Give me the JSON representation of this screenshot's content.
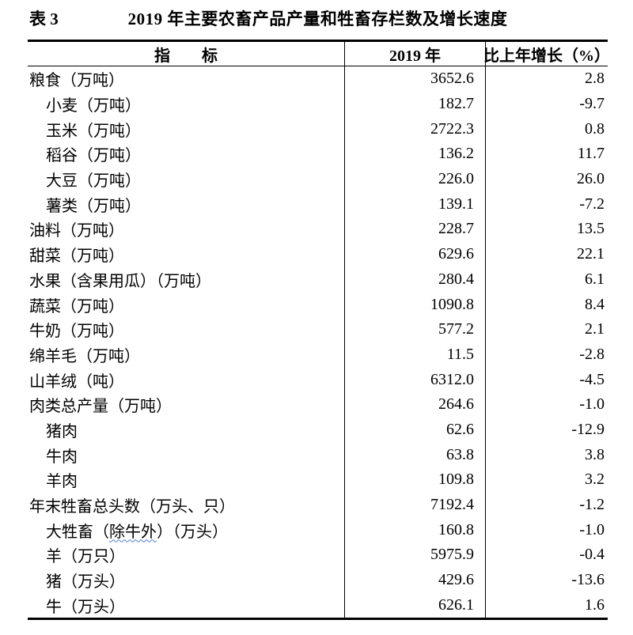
{
  "caption": {
    "label": "表 3",
    "title": "2019 年主要农畜产品产量和牲畜存栏数及增长速度"
  },
  "colors": {
    "text": "#000000",
    "table_border": "#000000",
    "spellcheck_squiggle": "#4f7bd9",
    "page_background": "#ffffff"
  },
  "table": {
    "col_headers": [
      "指　　标",
      "2019 年",
      "比上年增长（%）"
    ],
    "rows": [
      {
        "label": "粮食（万吨）",
        "indent": 0,
        "value": "3652.6",
        "growth": "2.8"
      },
      {
        "label": "小麦（万吨）",
        "indent": 1,
        "value": "182.7",
        "growth": "-9.7"
      },
      {
        "label": "玉米（万吨）",
        "indent": 1,
        "value": "2722.3",
        "growth": "0.8"
      },
      {
        "label": "稻谷（万吨）",
        "indent": 1,
        "value": "136.2",
        "growth": "11.7"
      },
      {
        "label": "大豆（万吨）",
        "indent": 1,
        "value": "226.0",
        "growth": "26.0"
      },
      {
        "label": "薯类（万吨）",
        "indent": 1,
        "value": "139.1",
        "growth": "-7.2"
      },
      {
        "label": "油料（万吨）",
        "indent": 0,
        "value": "228.7",
        "growth": "13.5"
      },
      {
        "label": "甜菜（万吨）",
        "indent": 0,
        "value": "629.6",
        "growth": "22.1"
      },
      {
        "label": "水果（含果用瓜）（万吨）",
        "indent": 0,
        "value": "280.4",
        "growth": "6.1"
      },
      {
        "label": "蔬菜（万吨）",
        "indent": 0,
        "value": "1090.8",
        "growth": "8.4"
      },
      {
        "label": "牛奶（万吨）",
        "indent": 0,
        "value": "577.2",
        "growth": "2.1"
      },
      {
        "label": "绵羊毛（万吨）",
        "indent": 0,
        "value": "11.5",
        "growth": "-2.8"
      },
      {
        "label": "山羊绒（吨）",
        "indent": 0,
        "value": "6312.0",
        "growth": "-4.5"
      },
      {
        "label": "肉类总产量（万吨）",
        "indent": 0,
        "value": "264.6",
        "growth": "-1.0"
      },
      {
        "label": "猪肉",
        "indent": 1,
        "value": "62.6",
        "growth": "-12.9"
      },
      {
        "label": "牛肉",
        "indent": 1,
        "value": "63.8",
        "growth": "3.8"
      },
      {
        "label": "羊肉",
        "indent": 1,
        "value": "109.8",
        "growth": "3.2"
      },
      {
        "label": "年末牲畜总头数（万头、只）",
        "indent": 0,
        "value": "7192.4",
        "growth": "-1.2"
      },
      {
        "label": "大牲畜（除牛外）（万头）",
        "indent": 1,
        "wavy_part": "除牛外",
        "value": "160.8",
        "growth": "-1.0"
      },
      {
        "label": "羊（万只）",
        "indent": 1,
        "value": "5975.9",
        "growth": "-0.4"
      },
      {
        "label": "猪（万头）",
        "indent": 1,
        "value": "429.6",
        "growth": "-13.6"
      },
      {
        "label": "牛（万头）",
        "indent": 1,
        "value": "626.1",
        "growth": "1.6"
      }
    ]
  }
}
